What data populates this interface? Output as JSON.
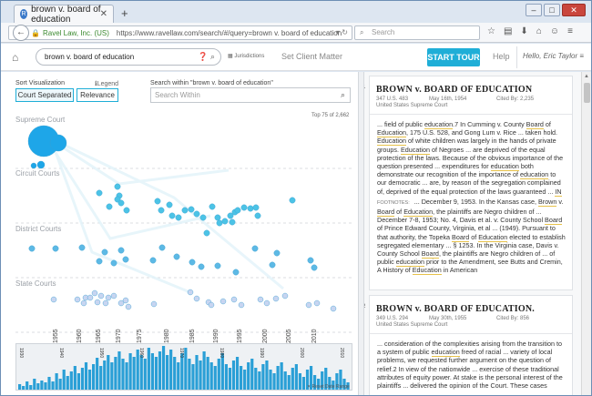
{
  "browser": {
    "tab_title": "brown v. board of education",
    "identity": "Ravel Law, Inc. (US)",
    "url": "https://www.ravellaw.com/search/#/query=brown v. board of education",
    "search_placeholder": "Search"
  },
  "header": {
    "query": "brown v. board of education",
    "jurisdictions_label": "Jurisdictions",
    "set_client_label": "Set Client Matter",
    "tour_label": "START TOUR",
    "help_label": "Help",
    "user_label": "Hello, Eric Taylor"
  },
  "left": {
    "sort_label": "Sort Visualization",
    "legend_label": "Legend",
    "sort_options": [
      "Court Separated",
      "Relevance"
    ],
    "search_within_label": "Search within \"brown v. board of education\"",
    "search_within_placeholder": "Search Within",
    "top_of": "Top 75 of 2,662",
    "bands": [
      "Supreme Court",
      "Circuit Courts",
      "District Courts",
      "State Courts"
    ],
    "years": [
      "1955",
      "1960",
      "1965",
      "1970",
      "1975",
      "1980",
      "1985",
      "1990",
      "1995",
      "2000",
      "2005",
      "2010"
    ],
    "hist_labels": [
      "1930",
      "1940",
      "1950",
      "1960",
      "1970",
      "1980",
      "1990",
      "2000",
      "2010"
    ],
    "reset_label": "Reset Date Range"
  },
  "colors": {
    "accent": "#1faed7",
    "circuit": "#4cc3e6",
    "district": "#5db9e5",
    "state": "#c7d5f1",
    "hist_bar": "#2a9fd6"
  },
  "cases": [
    {
      "num": "1",
      "title": "BROWN v. BOARD OF EDUCATION",
      "cite": "347 U.S. 483",
      "date": "May 16th, 1954",
      "cited_by": "Cited By: 2,235",
      "court": "United States Supreme Court",
      "p1": [
        "... field of public ",
        "education",
        ".7 In Cumming v. County ",
        "Board",
        " of ",
        "Education",
        ", 175 U.S. 528, and Gong Lum v. Rice ... taken hold. ",
        "Education",
        " of white children was largely in the hands of private groups. ",
        "Education",
        " of Negroes ... are deprived of the equal protection of the laws. Because of the obvious importance of the question presented ... expenditures for ",
        "education",
        " both demonstrate our recognition of the importance of ",
        "education",
        " to our democratic ... are, by reason of the segregation complained of, deprived of the equal protection of the laws guaranteed ... ",
        "IN"
      ],
      "footnotes_label": "FOOTNOTES:",
      "p2": [
        " ... December 9, 1953. In the Kansas case, ",
        "Brown",
        " v. ",
        "Board",
        " of ",
        "Education",
        ", the plaintiffs are Negro children of ... December 7-8, 1953; No. 4, Davis et al. v. County School ",
        "Board",
        " of Prince Edward County, Virginia, et al ... (1949). Pursuant to that authority, the Topeka ",
        "Board",
        " of ",
        "Education",
        " elected to establish segregated elementary ... § 1253. In the Virginia case, Davis v. County School ",
        "Board",
        ", the plaintiffs are Negro children of ... of public ",
        "education",
        " prior to the Amendment, see Butts and Cremin, A History of ",
        "Education",
        " in American"
      ]
    },
    {
      "num": "2",
      "title": "BROWN v. BOARD OF EDUCATION.",
      "cite": "349 U.S. 294",
      "date": "May 30th, 1955",
      "cited_by": "Cited By: 856",
      "court": "United States Supreme Court",
      "p1": [
        "... consideration of the complexities arising from the transition to a system of public ",
        "education",
        " freed of racial ... variety of local problems, we requested further argument on the question of relief.2 In view of the nationwide ... exercise of these traditional attributes of equity power. At stake is the personal interest of the plaintiffs ... delivered the opinion of the Court. These cases"
      ]
    }
  ]
}
